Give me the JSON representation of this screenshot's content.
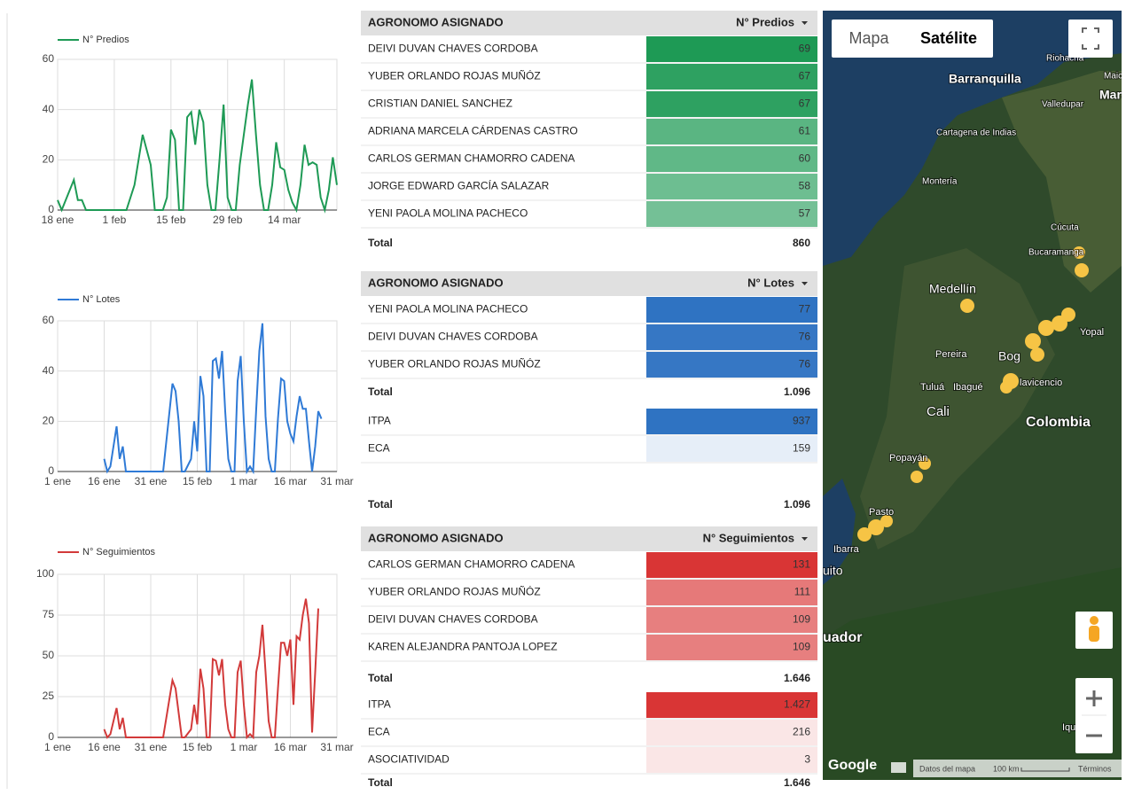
{
  "chart_data": [
    {
      "type": "line",
      "x": [
        18,
        19,
        22,
        23,
        24,
        25,
        35,
        37,
        39,
        41,
        42,
        44,
        45,
        46,
        47,
        48,
        49,
        50,
        51,
        52,
        53,
        54,
        55,
        56,
        57,
        58,
        59,
        60,
        61,
        62,
        63,
        64,
        65,
        66,
        67,
        68,
        69,
        70,
        71,
        72,
        73,
        74,
        75,
        76,
        77,
        78,
        79,
        80,
        81,
        82,
        83,
        84,
        85,
        86,
        87
      ],
      "series": [
        {
          "name": "N° Predios",
          "color": "#1e9a55",
          "values": [
            4,
            0,
            12,
            4,
            4,
            0,
            0,
            10,
            30,
            18,
            0,
            0,
            5,
            32,
            28,
            0,
            0,
            37,
            39,
            26,
            40,
            35,
            10,
            0,
            0,
            20,
            42,
            5,
            0,
            0,
            18,
            30,
            42,
            52,
            30,
            10,
            0,
            0,
            10,
            27,
            17,
            16,
            8,
            3,
            0,
            10,
            26,
            18,
            19,
            18,
            5,
            0,
            8,
            21,
            10
          ]
        }
      ],
      "xlim": [
        18,
        87
      ],
      "xticks": [
        {
          "value": 18,
          "label": "18 ene"
        },
        {
          "value": 32,
          "label": "1 feb"
        },
        {
          "value": 46,
          "label": "15 feb"
        },
        {
          "value": 60,
          "label": "29 feb"
        },
        {
          "value": 74,
          "label": "14 mar"
        }
      ],
      "ylim": [
        0,
        60
      ],
      "yticks": [
        0,
        20,
        40,
        60
      ],
      "grid": true
    },
    {
      "type": "line",
      "x": [
        16,
        17,
        18,
        20,
        21,
        22,
        23,
        32,
        35,
        38,
        39,
        40,
        41,
        42,
        44,
        45,
        46,
        47,
        48,
        49,
        50,
        51,
        52,
        53,
        54,
        55,
        56,
        57,
        58,
        59,
        60,
        61,
        62,
        63,
        64,
        65,
        66,
        67,
        68,
        69,
        70,
        71,
        72,
        73,
        74,
        75,
        76,
        77,
        78,
        79,
        80,
        81,
        82,
        83,
        84,
        85,
        86
      ],
      "series": [
        {
          "name": "N° Lotes",
          "color": "#2f7ad6",
          "values": [
            5,
            0,
            2,
            18,
            5,
            10,
            0,
            0,
            0,
            35,
            32,
            20,
            0,
            0,
            5,
            20,
            8,
            38,
            30,
            0,
            0,
            44,
            45,
            37,
            48,
            24,
            5,
            0,
            0,
            36,
            46,
            20,
            0,
            2,
            0,
            25,
            48,
            59,
            22,
            5,
            0,
            0,
            21,
            37,
            36,
            20,
            15,
            12,
            22,
            30,
            25,
            25,
            12,
            0,
            10,
            24,
            21
          ]
        }
      ],
      "xlim": [
        1,
        91
      ],
      "xticks": [
        {
          "value": 1,
          "label": "1 ene"
        },
        {
          "value": 16,
          "label": "16 ene"
        },
        {
          "value": 31,
          "label": "31 ene"
        },
        {
          "value": 46,
          "label": "15 feb"
        },
        {
          "value": 61,
          "label": "1 mar"
        },
        {
          "value": 76,
          "label": "16 mar"
        },
        {
          "value": 91,
          "label": "31 mar"
        }
      ],
      "ylim": [
        0,
        60
      ],
      "yticks": [
        0,
        20,
        40,
        60
      ],
      "grid": true
    },
    {
      "type": "line",
      "x": [
        16,
        17,
        18,
        20,
        21,
        22,
        23,
        32,
        35,
        38,
        39,
        40,
        41,
        42,
        44,
        45,
        46,
        47,
        48,
        49,
        50,
        51,
        52,
        53,
        54,
        55,
        56,
        57,
        58,
        59,
        60,
        61,
        62,
        63,
        64,
        65,
        66,
        67,
        68,
        69,
        70,
        71,
        72,
        73,
        74,
        75,
        76,
        77,
        78,
        79,
        80,
        81,
        82,
        83,
        84,
        85
      ],
      "series": [
        {
          "name": "N° Seguimientos",
          "color": "#d23a3a",
          "values": [
            5,
            0,
            2,
            18,
            5,
            12,
            0,
            0,
            0,
            35,
            30,
            15,
            0,
            0,
            5,
            20,
            8,
            42,
            30,
            0,
            0,
            48,
            47,
            38,
            48,
            20,
            5,
            0,
            0,
            40,
            47,
            20,
            0,
            2,
            0,
            40,
            50,
            69,
            40,
            10,
            0,
            0,
            30,
            58,
            58,
            50,
            60,
            20,
            62,
            60,
            75,
            85,
            70,
            3,
            40,
            79
          ]
        }
      ],
      "xlim": [
        1,
        91
      ],
      "xticks": [
        {
          "value": 1,
          "label": "1 ene"
        },
        {
          "value": 16,
          "label": "16 ene"
        },
        {
          "value": 31,
          "label": "31 ene"
        },
        {
          "value": 46,
          "label": "15 feb"
        },
        {
          "value": 61,
          "label": "1 mar"
        },
        {
          "value": 76,
          "label": "16 mar"
        },
        {
          "value": 91,
          "label": "31 mar"
        }
      ],
      "ylim": [
        0,
        100
      ],
      "yticks": [
        0,
        25,
        50,
        75,
        100
      ],
      "grid": true
    }
  ],
  "tables": [
    {
      "columns": [
        "AGRONOMO ASIGNADO",
        "N° Predios"
      ],
      "color": "#1e9a55",
      "names": [
        "DEIVI DUVAN CHAVES CORDOBA",
        "YUBER ORLANDO ROJAS MUÑÓZ",
        "CRISTIAN DANIEL SANCHEZ",
        "ADRIANA MARCELA CÁRDENAS CASTRO",
        "CARLOS GERMAN CHAMORRO CADENA",
        "JORGE EDWARD GARCÍA SALAZAR",
        "YENI PAOLA MOLINA PACHECO"
      ],
      "values": [
        69,
        67,
        67,
        61,
        60,
        58,
        57
      ],
      "total": {
        "label": "Total",
        "value": 860
      }
    },
    {
      "columns": [
        "AGRONOMO ASIGNADO",
        "N° Lotes"
      ],
      "color": "#2f73c2",
      "names": [
        "YENI PAOLA MOLINA PACHECO",
        "DEIVI DUVAN CHAVES CORDOBA",
        "YUBER ORLANDO ROJAS MUÑÓZ"
      ],
      "values": [
        77,
        76,
        76
      ],
      "total": {
        "label": "Total",
        "value": 1096,
        "value_label": "1.096"
      },
      "breakdown": {
        "names": [
          "ITPA",
          "ECA"
        ],
        "values": [
          937,
          159
        ],
        "total": {
          "label": "Total",
          "value": 1096,
          "value_label": "1.096"
        }
      }
    },
    {
      "columns": [
        "AGRONOMO ASIGNADO",
        "N° Seguimientos"
      ],
      "color": "#d93535",
      "names": [
        "CARLOS GERMAN CHAMORRO CADENA",
        "YUBER ORLANDO ROJAS MUÑÓZ",
        "DEIVI DUVAN CHAVES CORDOBA",
        "KAREN ALEJANDRA PANTOJA LOPEZ"
      ],
      "values": [
        131,
        111,
        109,
        109
      ],
      "total": {
        "label": "Total",
        "value": 1646,
        "value_label": "1.646"
      },
      "breakdown": {
        "names": [
          "ITPA",
          "ECA",
          "ASOCIATIVIDAD"
        ],
        "values": [
          1427,
          216,
          3
        ],
        "value_labels": [
          "1.427",
          "216",
          "3"
        ],
        "total": {
          "label": "Total",
          "value": 1646,
          "value_label": "1.646"
        }
      }
    }
  ],
  "map": {
    "buttons": [
      "Mapa",
      "Satélite"
    ],
    "places": [
      "Riohacha",
      "Maic",
      "Barranquilla",
      "Mara",
      "Valledupar",
      "Cartagena de Indias",
      "Montería",
      "Cúcuta",
      "Bucaramanga",
      "Medellín",
      "Yopal",
      "Pereira",
      "Bog",
      "Tuluá",
      "Ibagué",
      "lavicencio",
      "Cali",
      "Colombia",
      "Popayán",
      "Pasto",
      "Ibarra",
      "uito",
      "uador",
      "Iquitos"
    ],
    "attribution": {
      "logo": "Google",
      "data": "Datos del mapa",
      "scale": "100 km",
      "terms": "Términos"
    }
  }
}
